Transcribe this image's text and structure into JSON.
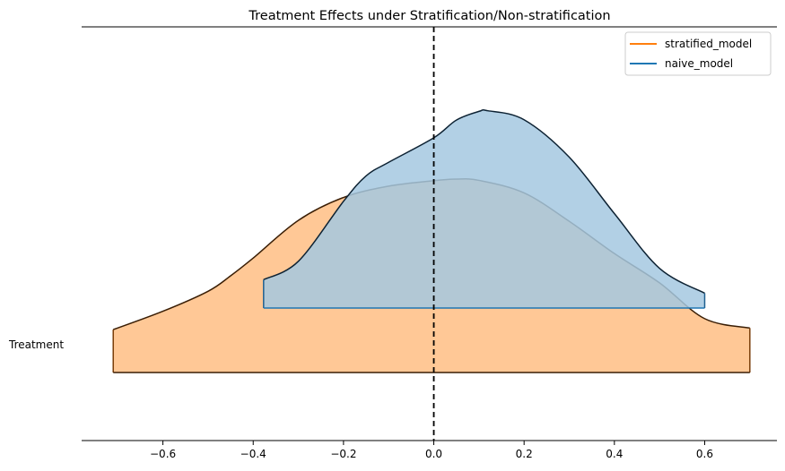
{
  "chart_data": {
    "type": "area",
    "title": "Treatment Effects under Stratification/Non-stratification",
    "xlabel": "",
    "ylabel": "",
    "xlim": [
      -0.78,
      0.76
    ],
    "x_ticks": [
      -0.6,
      -0.4,
      -0.2,
      0.0,
      0.2,
      0.4,
      0.6
    ],
    "x_tick_labels": [
      "−0.6",
      "−0.4",
      "−0.2",
      "0.0",
      "0.2",
      "0.4",
      "0.6"
    ],
    "y_category": "Treatment",
    "reference_line_x": 0.0,
    "grid": false,
    "legend_position": "top-right",
    "series": [
      {
        "name": "stratified_model",
        "color": "#ff7f0e",
        "fill": "#ffc896",
        "baseline": 0.0,
        "x": [
          -0.71,
          -0.6,
          -0.5,
          -0.45,
          -0.4,
          -0.3,
          -0.2,
          -0.1,
          0.0,
          0.05,
          0.1,
          0.2,
          0.3,
          0.4,
          0.5,
          0.6,
          0.7
        ],
        "y": [
          0.133,
          0.19,
          0.252,
          0.3,
          0.355,
          0.472,
          0.543,
          0.578,
          0.595,
          0.6,
          0.596,
          0.557,
          0.469,
          0.369,
          0.278,
          0.167,
          0.138
        ]
      },
      {
        "name": "naive_model",
        "color": "#1f77b4",
        "fill": "#a5c8e1",
        "baseline": 0.2,
        "x": [
          -0.377,
          -0.3,
          -0.2,
          -0.15,
          -0.1,
          0.0,
          0.05,
          0.1,
          0.12,
          0.2,
          0.3,
          0.4,
          0.5,
          0.6
        ],
        "y": [
          0.288,
          0.345,
          0.531,
          0.61,
          0.652,
          0.728,
          0.783,
          0.81,
          0.812,
          0.784,
          0.668,
          0.493,
          0.323,
          0.246
        ]
      }
    ]
  }
}
